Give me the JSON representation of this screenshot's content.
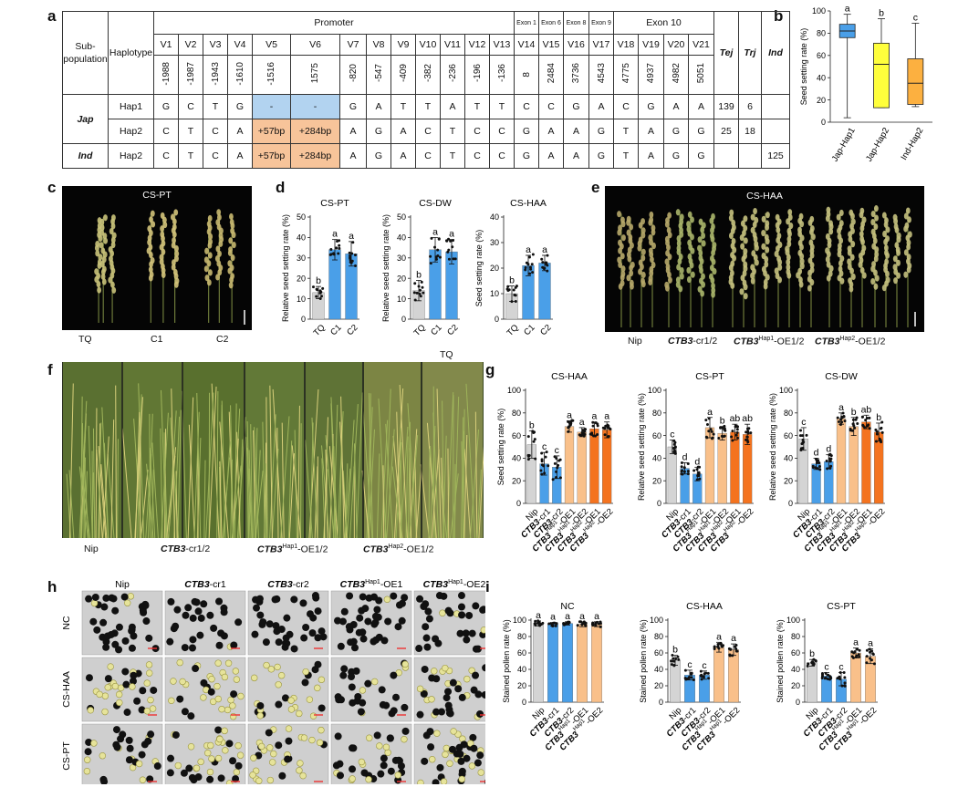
{
  "panels": {
    "a": "a",
    "b": "b",
    "c": "c",
    "d": "d",
    "e": "e",
    "f": "f",
    "g": "g",
    "h": "h",
    "i": "i"
  },
  "table": {
    "subpop_header": "Sub-\npopulation",
    "haplotype_header": "Haplotype",
    "promoter": "Promoter",
    "exon_labels": [
      "Exon 1",
      "Exon 6",
      "Exon 8",
      "Exon 9",
      "Exon 10"
    ],
    "variants": [
      "V1",
      "V2",
      "V3",
      "V4",
      "V5",
      "V6",
      "V7",
      "V8",
      "V9",
      "V10",
      "V11",
      "V12",
      "V13",
      "V14",
      "V15",
      "V16",
      "V17",
      "V18",
      "V19",
      "V20",
      "V21"
    ],
    "positions": [
      "-1988",
      "-1987",
      "-1943",
      "-1610",
      "-1516",
      "1575",
      "-820",
      "-547",
      "-409",
      "-382",
      "-236",
      "-196",
      "-136",
      "8",
      "2484",
      "3736",
      "4543",
      "4775",
      "4937",
      "4982",
      "5051"
    ],
    "tej": "Tej",
    "trj": "Trj",
    "ind": "Ind",
    "rows": [
      {
        "pop": "Jap",
        "hap": "Hap1",
        "alleles": [
          "G",
          "C",
          "T",
          "G",
          "-",
          "-",
          "G",
          "A",
          "T",
          "T",
          "A",
          "T",
          "T",
          "C",
          "C",
          "G",
          "A",
          "C",
          "G",
          "A",
          "A"
        ],
        "tej": "139",
        "trj": "6",
        "ind": ""
      },
      {
        "pop": "",
        "hap": "Hap2",
        "alleles": [
          "C",
          "T",
          "C",
          "A",
          "+57bp",
          "+284bp",
          "A",
          "G",
          "A",
          "C",
          "T",
          "C",
          "C",
          "G",
          "A",
          "A",
          "G",
          "T",
          "A",
          "G",
          "G"
        ],
        "tej": "25",
        "trj": "18",
        "ind": ""
      },
      {
        "pop": "Ind",
        "hap": "Hap2",
        "alleles": [
          "C",
          "T",
          "C",
          "A",
          "+57bp",
          "+284bp",
          "A",
          "G",
          "A",
          "C",
          "T",
          "C",
          "C",
          "G",
          "A",
          "A",
          "G",
          "T",
          "A",
          "G",
          "G"
        ],
        "tej": "",
        "trj": "",
        "ind": "125"
      }
    ]
  },
  "colors": {
    "gray": "#d4d4d4",
    "blue": "#4a9fe8",
    "yellow": "#ffff3c",
    "orange": "#fcb040",
    "lightorange": "#f9c08a",
    "darkorange": "#f4731f",
    "hap1cell": "#b2d3f0",
    "hap2cell": "#f7c49a"
  },
  "chart_b": {
    "chart_data": {
      "type": "box",
      "ylabel": "Seed setting rate (%)",
      "ylim": [
        0,
        100
      ],
      "yticks": [
        "0",
        "20",
        "40",
        "60",
        "80",
        "100"
      ],
      "categories": [
        "Jap-Hap1",
        "Jap-Hap2",
        "Ind-Hap2"
      ],
      "boxes": [
        {
          "min": 4,
          "q1": 76,
          "median": 82,
          "q3": 88,
          "max": 97,
          "letter": "a"
        },
        {
          "min": 13,
          "q1": 13,
          "median": 52,
          "q3": 71,
          "max": 93,
          "letter": "b"
        },
        {
          "min": 14,
          "q1": 16,
          "median": 35,
          "q3": 57,
          "max": 89,
          "letter": "c"
        }
      ]
    }
  },
  "panel_c": {
    "title": "CS-PT",
    "labels": [
      "TQ",
      "C1",
      "C2"
    ]
  },
  "charts_d": [
    {
      "title": "CS-PT",
      "ylabel": "Relative seed setting rate (%)",
      "ylim": [
        0,
        50
      ],
      "yticks": [
        "0",
        "10",
        "20",
        "30",
        "40",
        "50"
      ],
      "categories": [
        "TQ",
        "C1",
        "C2"
      ],
      "chart_data": {
        "type": "bar",
        "values": [
          13,
          34,
          32
        ],
        "errors": [
          3,
          5,
          6
        ],
        "letters": [
          "b",
          "a",
          "a"
        ]
      }
    },
    {
      "title": "CS-DW",
      "ylabel": "Relative seed setting rate (%)",
      "ylim": [
        0,
        50
      ],
      "yticks": [
        "0",
        "10",
        "20",
        "30",
        "40",
        "50"
      ],
      "categories": [
        "TQ",
        "C1",
        "C2"
      ],
      "chart_data": {
        "type": "bar",
        "values": [
          14,
          34,
          33
        ],
        "errors": [
          5,
          6,
          6
        ],
        "letters": [
          "b",
          "a",
          "a"
        ]
      }
    },
    {
      "title": "CS-HAA",
      "ylabel": "Seed setting rate (%)",
      "ylim": [
        0,
        40
      ],
      "yticks": [
        "0",
        "10",
        "20",
        "30",
        "40"
      ],
      "categories": [
        "TQ",
        "C1",
        "C2"
      ],
      "chart_data": {
        "type": "bar",
        "values": [
          10,
          21,
          22
        ],
        "errors": [
          3,
          4,
          3
        ],
        "letters": [
          "b",
          "a",
          "a"
        ]
      }
    }
  ],
  "panel_e": {
    "title": "CS-HAA",
    "labels": [
      "Nip",
      "CTB3-cr1/2",
      "CTB3Hap1-OE1/2",
      "CTB3Hap2-OE1/2"
    ]
  },
  "panel_f": {
    "labels": [
      "Nip",
      "CTB3-cr1/2",
      "CTB3Hap1-OE1/2",
      "CTB3Hap2-OE1/2"
    ],
    "top_label": "TQ"
  },
  "charts_g": [
    {
      "title": "CS-HAA",
      "ylabel": "Seed setting rate (%)",
      "ylim": [
        0,
        100
      ],
      "yticks": [
        "0",
        "20",
        "40",
        "60",
        "80",
        "100"
      ],
      "chart_data": {
        "type": "bar",
        "values": [
          52,
          35,
          32,
          68,
          63,
          66,
          65
        ],
        "errors": [
          12,
          10,
          10,
          5,
          4,
          6,
          7
        ],
        "letters": [
          "b",
          "c",
          "c",
          "a",
          "a",
          "a",
          "a"
        ]
      }
    },
    {
      "title": "CS-PT",
      "ylabel": "Relative seed setting rate (%)",
      "ylim": [
        0,
        100
      ],
      "yticks": [
        "0",
        "20",
        "40",
        "60",
        "80",
        "100"
      ],
      "chart_data": {
        "type": "bar",
        "values": [
          50,
          31,
          26,
          67,
          62,
          63,
          61
        ],
        "errors": [
          6,
          5,
          6,
          9,
          6,
          7,
          9
        ],
        "letters": [
          "c",
          "d",
          "d",
          "a",
          "b",
          "ab",
          "ab"
        ]
      }
    },
    {
      "title": "CS-DW",
      "ylabel": "Relative seed setting rate (%)",
      "ylim": [
        0,
        100
      ],
      "yticks": [
        "0",
        "20",
        "40",
        "60",
        "80",
        "100"
      ],
      "chart_data": {
        "type": "bar",
        "values": [
          57,
          35,
          37,
          75,
          68,
          72,
          63
        ],
        "errors": [
          10,
          5,
          6,
          5,
          8,
          6,
          8
        ],
        "letters": [
          "c",
          "d",
          "d",
          "a",
          "b",
          "ab",
          "b"
        ]
      }
    }
  ],
  "g_categories": [
    {
      "pre": "Nip",
      "sup": "",
      "post": ""
    },
    {
      "pre": "CTB3",
      "sup": "",
      "post": "-cr1"
    },
    {
      "pre": "CTB3",
      "sup": "",
      "post": "-cr2"
    },
    {
      "pre": "CTB3",
      "sup": "Hap1",
      "post": "-OE1"
    },
    {
      "pre": "CTB3",
      "sup": "Hap1",
      "post": "-OE2"
    },
    {
      "pre": "CTB3",
      "sup": "Hap2",
      "post": "-OE1"
    },
    {
      "pre": "CTB3",
      "sup": "Hap2",
      "post": "-OE2"
    }
  ],
  "panel_h": {
    "cols": [
      "Nip",
      "CTB3-cr1",
      "CTB3-cr2",
      "CTB3Hap1-OE1",
      "CTB3Hap1-OE2"
    ],
    "rows": [
      "NC",
      "CS-HAA",
      "CS-PT"
    ]
  },
  "charts_i": [
    {
      "title": "NC",
      "ylabel": "Stained pollen rate (%)",
      "ylim": [
        0,
        100
      ],
      "yticks": [
        "0",
        "20",
        "40",
        "60",
        "80",
        "100"
      ],
      "chart_data": {
        "type": "bar",
        "values": [
          96,
          95,
          96,
          95,
          95
        ],
        "errors": [
          3,
          2,
          2,
          3,
          3
        ],
        "letters": [
          "a",
          "a",
          "a",
          "a",
          "a"
        ]
      }
    },
    {
      "title": "CS-HAA",
      "ylabel": "Stained pollen rate (%)",
      "ylim": [
        0,
        100
      ],
      "yticks": [
        "0",
        "20",
        "40",
        "60",
        "80",
        "100"
      ],
      "chart_data": {
        "type": "bar",
        "values": [
          51,
          33,
          33,
          67,
          64
        ],
        "errors": [
          6,
          6,
          5,
          6,
          7
        ],
        "letters": [
          "b",
          "c",
          "c",
          "a",
          "a"
        ]
      }
    },
    {
      "title": "CS-PT",
      "ylabel": "Stained pollen rate (%)",
      "ylim": [
        0,
        100
      ],
      "yticks": [
        "0",
        "20",
        "40",
        "60",
        "80",
        "100"
      ],
      "chart_data": {
        "type": "bar",
        "values": [
          48,
          32,
          28,
          60,
          56
        ],
        "errors": [
          4,
          4,
          8,
          6,
          9
        ],
        "letters": [
          "b",
          "c",
          "c",
          "a",
          "a"
        ]
      }
    }
  ],
  "i_categories": [
    {
      "pre": "Nip",
      "sup": "",
      "post": ""
    },
    {
      "pre": "CTB3",
      "sup": "",
      "post": "-cr1"
    },
    {
      "pre": "CTB3",
      "sup": "",
      "post": "-cr2"
    },
    {
      "pre": "CTB3",
      "sup": "Hap1",
      "post": "-OE1"
    },
    {
      "pre": "CTB3",
      "sup": "Hap1",
      "post": "-OE2"
    }
  ]
}
